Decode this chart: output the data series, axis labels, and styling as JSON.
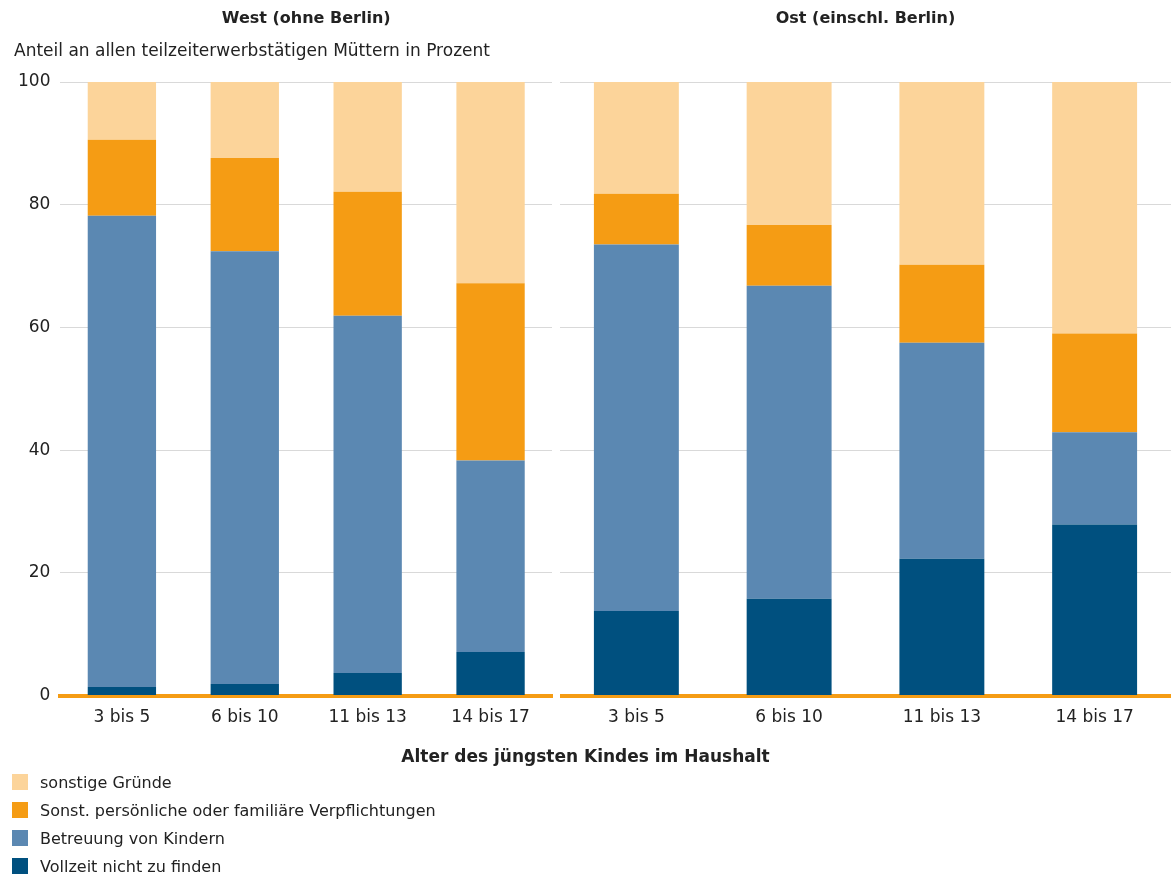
{
  "chart_data": [
    {
      "type": "bar",
      "title": "West (ohne Berlin)",
      "ylabel": "Anteil an allen teilzeiterwerbstätigen Müttern in Prozent",
      "xlabel": "Alter des jüngsten Kindes im Haushalt",
      "categories": [
        "3 bis 5",
        "6 bis 10",
        "11 bis 13",
        "14 bis 17"
      ],
      "stacked": true,
      "ylim": [
        0,
        100
      ],
      "yticks": [
        0,
        20,
        40,
        60,
        80,
        100
      ],
      "grid": "y",
      "legend": "bottom",
      "series": [
        {
          "name": "Vollzeit nicht zu finden",
          "color": "#00507f",
          "values": [
            1.4,
            1.9,
            3.7,
            7.1
          ]
        },
        {
          "name": "Betreuung von Kindern",
          "color": "#5b88b2",
          "values": [
            76.8,
            70.5,
            58.2,
            31.2
          ]
        },
        {
          "name": "Sonst. persönliche oder familiäre Verpflichtungen",
          "color": "#f59c14",
          "values": [
            12.4,
            15.2,
            20.2,
            28.9
          ]
        },
        {
          "name": "sonstige Gründe",
          "color": "#fcd49a",
          "values": [
            9.4,
            12.4,
            17.9,
            32.8
          ]
        }
      ]
    },
    {
      "type": "bar",
      "title": "Ost (einschl. Berlin)",
      "categories": [
        "3 bis 5",
        "6 bis 10",
        "11 bis 13",
        "14 bis 17"
      ],
      "stacked": true,
      "ylim": [
        0,
        100
      ],
      "yticks": [
        0,
        20,
        40,
        60,
        80,
        100
      ],
      "grid": "y",
      "tick_labels": "x",
      "series": [
        {
          "color": "#00507f",
          "values": [
            13.8,
            15.8,
            22.3,
            27.9
          ]
        },
        {
          "color": "#5b88b2",
          "values": [
            59.7,
            51.0,
            35.2,
            15.0
          ]
        },
        {
          "color": "#f59c14",
          "values": [
            8.3,
            9.9,
            12.7,
            16.1
          ]
        },
        {
          "color": "#fcd49a",
          "values": [
            18.2,
            23.3,
            29.8,
            41.0
          ]
        }
      ]
    }
  ]
}
